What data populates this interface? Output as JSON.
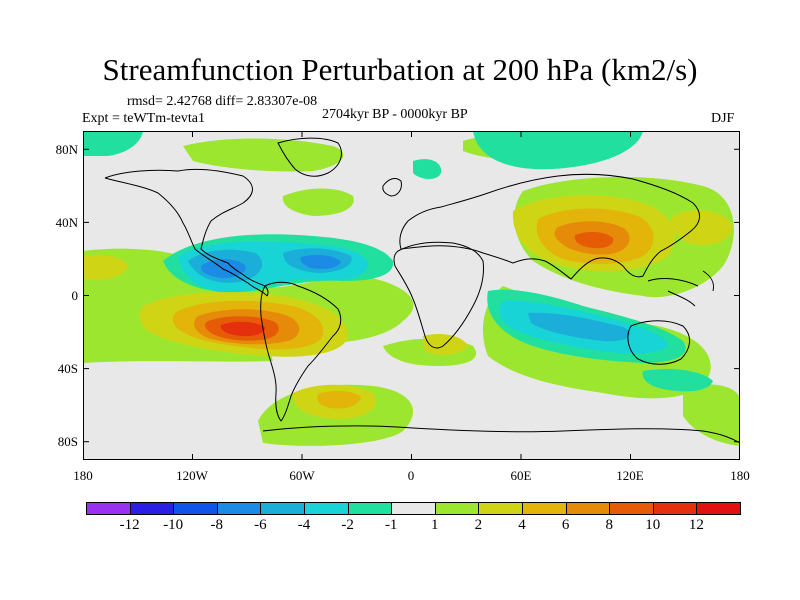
{
  "title": "Streamfunction Perturbation at 200 hPa (km2/s)",
  "stats": "rmsd= 2.42768 diff= 2.83307e-08",
  "experiment": "Expt = teWTm-tevta1",
  "period": "2704kyr BP - 0000kyr BP",
  "season": "DJF",
  "chart_data": {
    "type": "heatmap",
    "title": "Streamfunction Perturbation at 200 hPa (km2/s)",
    "x_ticks": [
      "180",
      "120W",
      "60W",
      "0",
      "60E",
      "120E",
      "180"
    ],
    "y_ticks": [
      "80N",
      "40N",
      "0",
      "40S",
      "80S"
    ],
    "xlim": [
      -180,
      180
    ],
    "ylim": [
      -90,
      90
    ],
    "colorbar": {
      "labels": [
        "-12",
        "-10",
        "-8",
        "-6",
        "-4",
        "-2",
        "-1",
        "1",
        "2",
        "4",
        "6",
        "8",
        "10",
        "12"
      ],
      "colors": [
        "#9b31f0",
        "#2b1fe6",
        "#0e55e8",
        "#1b8be6",
        "#1aaed8",
        "#19d4d6",
        "#21df9e",
        "#e8e8e8",
        "#9de62f",
        "#cfd515",
        "#e3b40a",
        "#e68a0a",
        "#e65c06",
        "#e5300e",
        "#e31010"
      ]
    },
    "anomalies": [
      {
        "name": "south-america-high",
        "lon": -88,
        "lat": -22,
        "value": 11
      },
      {
        "name": "asia-high",
        "lon": 95,
        "lat": 25,
        "value": 8
      },
      {
        "name": "eastern-pacific-low",
        "lon": -98,
        "lat": 12,
        "value": -5
      },
      {
        "name": "caribbean-low",
        "lon": -52,
        "lat": 15,
        "value": -5
      },
      {
        "name": "indian-ocean-low",
        "lon": 75,
        "lat": -20,
        "value": -3
      },
      {
        "name": "south-atlantic-high",
        "lon": -42,
        "lat": -65,
        "value": 5
      },
      {
        "name": "north-pacific-high",
        "lon": 165,
        "lat": 55,
        "value": 3
      }
    ]
  }
}
